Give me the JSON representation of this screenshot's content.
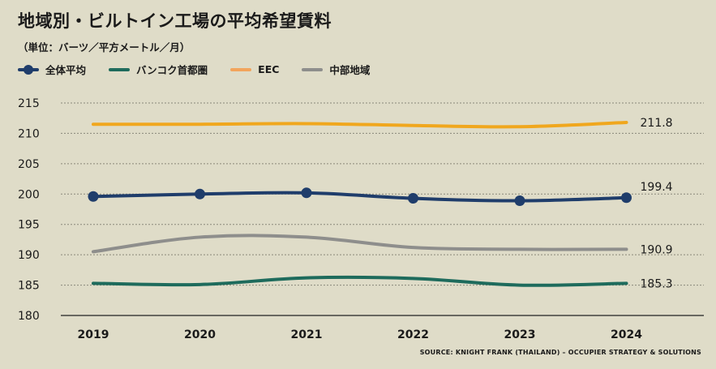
{
  "title": "地域別・ビルトイン工場の平均希望賃料",
  "subtitle": "（単位：バーツ／平方メートル／月）",
  "source": "SOURCE: KNIGHT FRANK (THAILAND) – OCCUPIER STRATEGY & SOLUTIONS",
  "chart_data": {
    "type": "line",
    "x": [
      "2019",
      "2020",
      "2021",
      "2022",
      "2023",
      "2024"
    ],
    "ylim": [
      180,
      215
    ],
    "yticks": [
      180,
      185,
      190,
      195,
      200,
      205,
      210,
      215
    ],
    "grid": true,
    "legend_position": "top-left",
    "series": [
      {
        "name": "全体平均",
        "color": "#1f3d6b",
        "markers": true,
        "values": [
          199.6,
          200.0,
          200.2,
          199.3,
          198.9,
          199.4
        ],
        "end_label": "199.4"
      },
      {
        "name": "バンコク首都圏",
        "color": "#1e6b5c",
        "markers": false,
        "values": [
          185.3,
          185.1,
          186.2,
          186.1,
          185.0,
          185.3
        ],
        "end_label": "185.3"
      },
      {
        "name": "EEC",
        "color": "#f0a71e",
        "legend_color": "#f2a45c",
        "markers": false,
        "values": [
          211.5,
          211.5,
          211.6,
          211.3,
          211.1,
          211.8
        ],
        "end_label": "211.8"
      },
      {
        "name": "中部地域",
        "color": "#8e8e8c",
        "markers": false,
        "values": [
          190.5,
          192.9,
          192.9,
          191.2,
          190.9,
          190.9
        ],
        "end_label": "190.9"
      }
    ]
  }
}
